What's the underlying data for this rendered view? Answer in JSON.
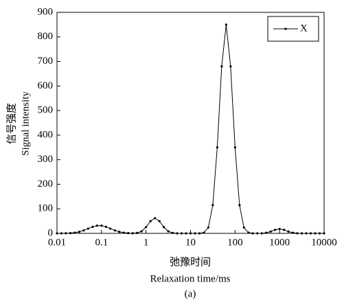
{
  "chart_data": {
    "type": "line",
    "xlabel": [
      "弛豫时间",
      "Relaxation time/ms"
    ],
    "ylabel": [
      "信号强度",
      "Signal intensity"
    ],
    "caption": "(a)",
    "x": [
      0.01,
      0.0126,
      0.0158,
      0.02,
      0.0251,
      0.0316,
      0.0398,
      0.0501,
      0.0631,
      0.0794,
      0.1,
      0.126,
      0.158,
      0.2,
      0.251,
      0.316,
      0.398,
      0.501,
      0.631,
      0.794,
      1,
      1.26,
      1.58,
      2,
      2.51,
      3.16,
      3.98,
      5.01,
      6.31,
      7.94,
      10,
      12.6,
      15.8,
      20,
      25.1,
      31.6,
      39.8,
      50.1,
      63.1,
      79.4,
      100,
      126,
      158,
      200,
      251,
      316,
      398,
      501,
      631,
      794,
      1000,
      1260,
      1580,
      2000,
      2510,
      3160,
      3980,
      5010,
      6310,
      7940,
      10000
    ],
    "series": [
      {
        "name": "X",
        "color": "#000000",
        "values": [
          0,
          0.1,
          0.4,
          1.1,
          2.8,
          6.3,
          12,
          19.4,
          26.7,
          31.4,
          31.4,
          26.7,
          19.4,
          12,
          6.3,
          2.8,
          1.1,
          0.4,
          1.8,
          8.4,
          25.5,
          49.6,
          62,
          49.6,
          25.5,
          8.4,
          1.8,
          0,
          0,
          0,
          0,
          0,
          0,
          3,
          24,
          115,
          350,
          680,
          850,
          680,
          350,
          115,
          24,
          3,
          0,
          0,
          0,
          2.4,
          7.4,
          14.4,
          18,
          14.4,
          7.4,
          2.4,
          0.5,
          0,
          0,
          0,
          0,
          0,
          0
        ]
      }
    ],
    "xscale": "log",
    "xlim": [
      0.01,
      10000
    ],
    "xticks": [
      0.01,
      0.1,
      1,
      10,
      100,
      1000,
      10000
    ],
    "ylim": [
      0,
      900
    ],
    "yticks": [
      0,
      100,
      200,
      300,
      400,
      500,
      600,
      700,
      800,
      900
    ],
    "legend": "upper right"
  }
}
